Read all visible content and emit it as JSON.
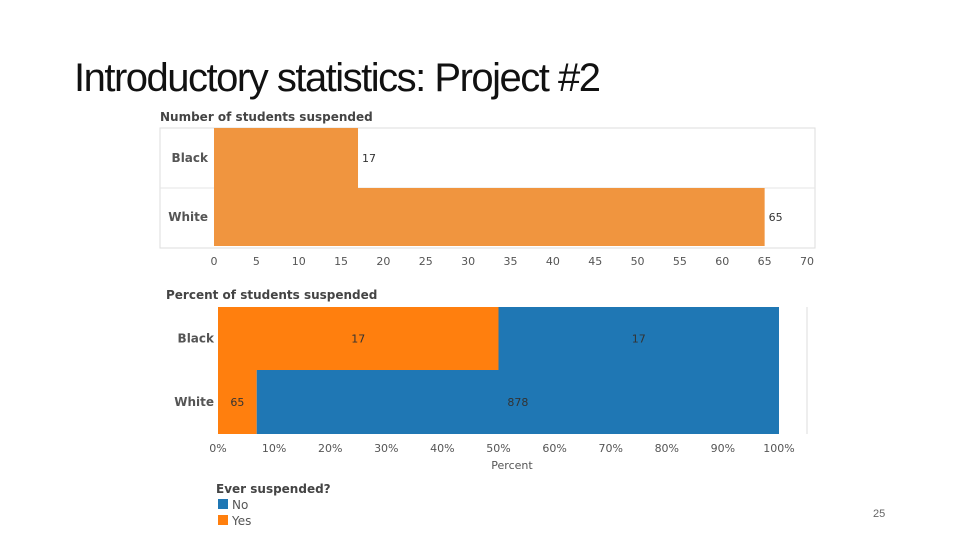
{
  "slide": {
    "title": "Introductory statistics: Project #2",
    "page_number": "25"
  },
  "colors": {
    "count_bar": "#f0953f",
    "no": "#1f77b4",
    "yes": "#ff7f0e"
  },
  "chart_data": [
    {
      "type": "bar",
      "orientation": "horizontal",
      "title": "Number of students suspended",
      "categories": [
        "Black",
        "White"
      ],
      "values": [
        17,
        65
      ],
      "data_labels": [
        "17",
        "65"
      ],
      "xlim": [
        0,
        70
      ],
      "x_ticks": [
        0,
        5,
        10,
        15,
        20,
        25,
        30,
        35,
        40,
        45,
        50,
        55,
        60,
        65,
        70
      ],
      "xlabel": "",
      "ylabel": ""
    },
    {
      "type": "bar",
      "orientation": "horizontal",
      "stacked": "percent",
      "title": "Percent of students suspended",
      "categories": [
        "Black",
        "White"
      ],
      "xlabel": "Percent",
      "xlim": [
        0,
        100
      ],
      "x_ticks": [
        "0%",
        "10%",
        "20%",
        "30%",
        "40%",
        "50%",
        "60%",
        "70%",
        "80%",
        "90%",
        "100%"
      ],
      "series": [
        {
          "name": "Yes",
          "values": [
            50,
            6.9
          ],
          "data_labels": [
            "17",
            "65"
          ]
        },
        {
          "name": "No",
          "values": [
            50,
            93.1
          ],
          "data_labels": [
            "17",
            "878"
          ]
        }
      ],
      "legend": {
        "title": "Ever suspended?",
        "position": "bottom-left",
        "entries": [
          "No",
          "Yes"
        ]
      }
    }
  ]
}
